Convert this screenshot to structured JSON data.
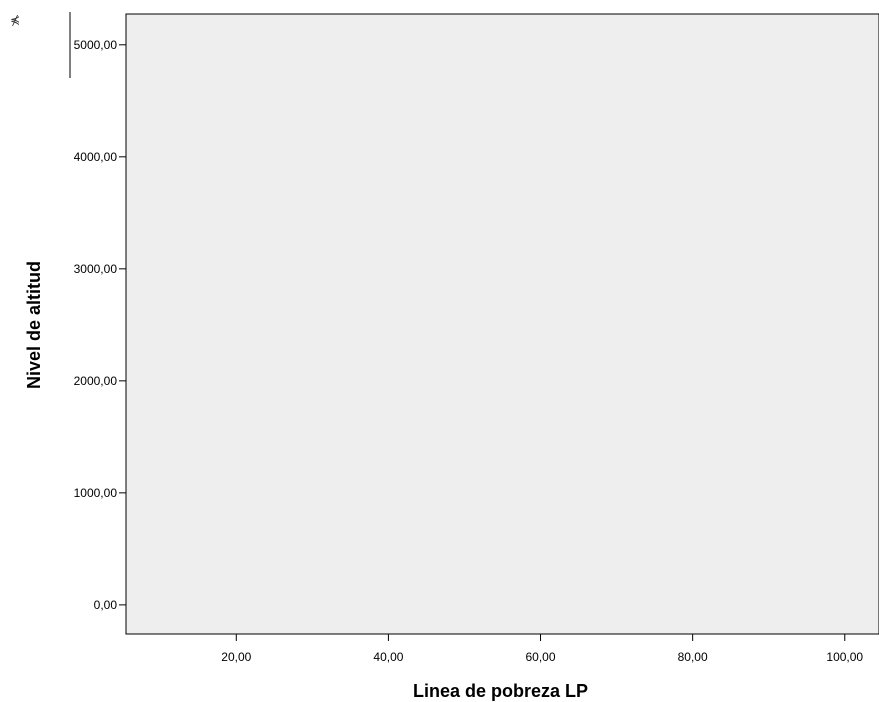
{
  "chart_data": {
    "type": "scatter",
    "title": "",
    "xlabel": "Linea de pobreza LP",
    "ylabel": "Nivel de altitud",
    "xlim": [
      5.5,
      104.5
    ],
    "ylim": [
      -260,
      5275
    ],
    "x_ticks": [
      20,
      40,
      60,
      80,
      100
    ],
    "x_tick_labels": [
      "20,00",
      "40,00",
      "60,00",
      "80,00",
      "100,00"
    ],
    "y_ticks": [
      0,
      1000,
      2000,
      3000,
      4000,
      5000
    ],
    "y_tick_labels": [
      "0,00",
      "1000,00",
      "2000,00",
      "3000,00",
      "4000,00",
      "5000,00"
    ],
    "series": [],
    "grid": false,
    "colors": {
      "plot_background": "#eeeeee",
      "axis": "#000000",
      "frame": "#000000"
    }
  }
}
